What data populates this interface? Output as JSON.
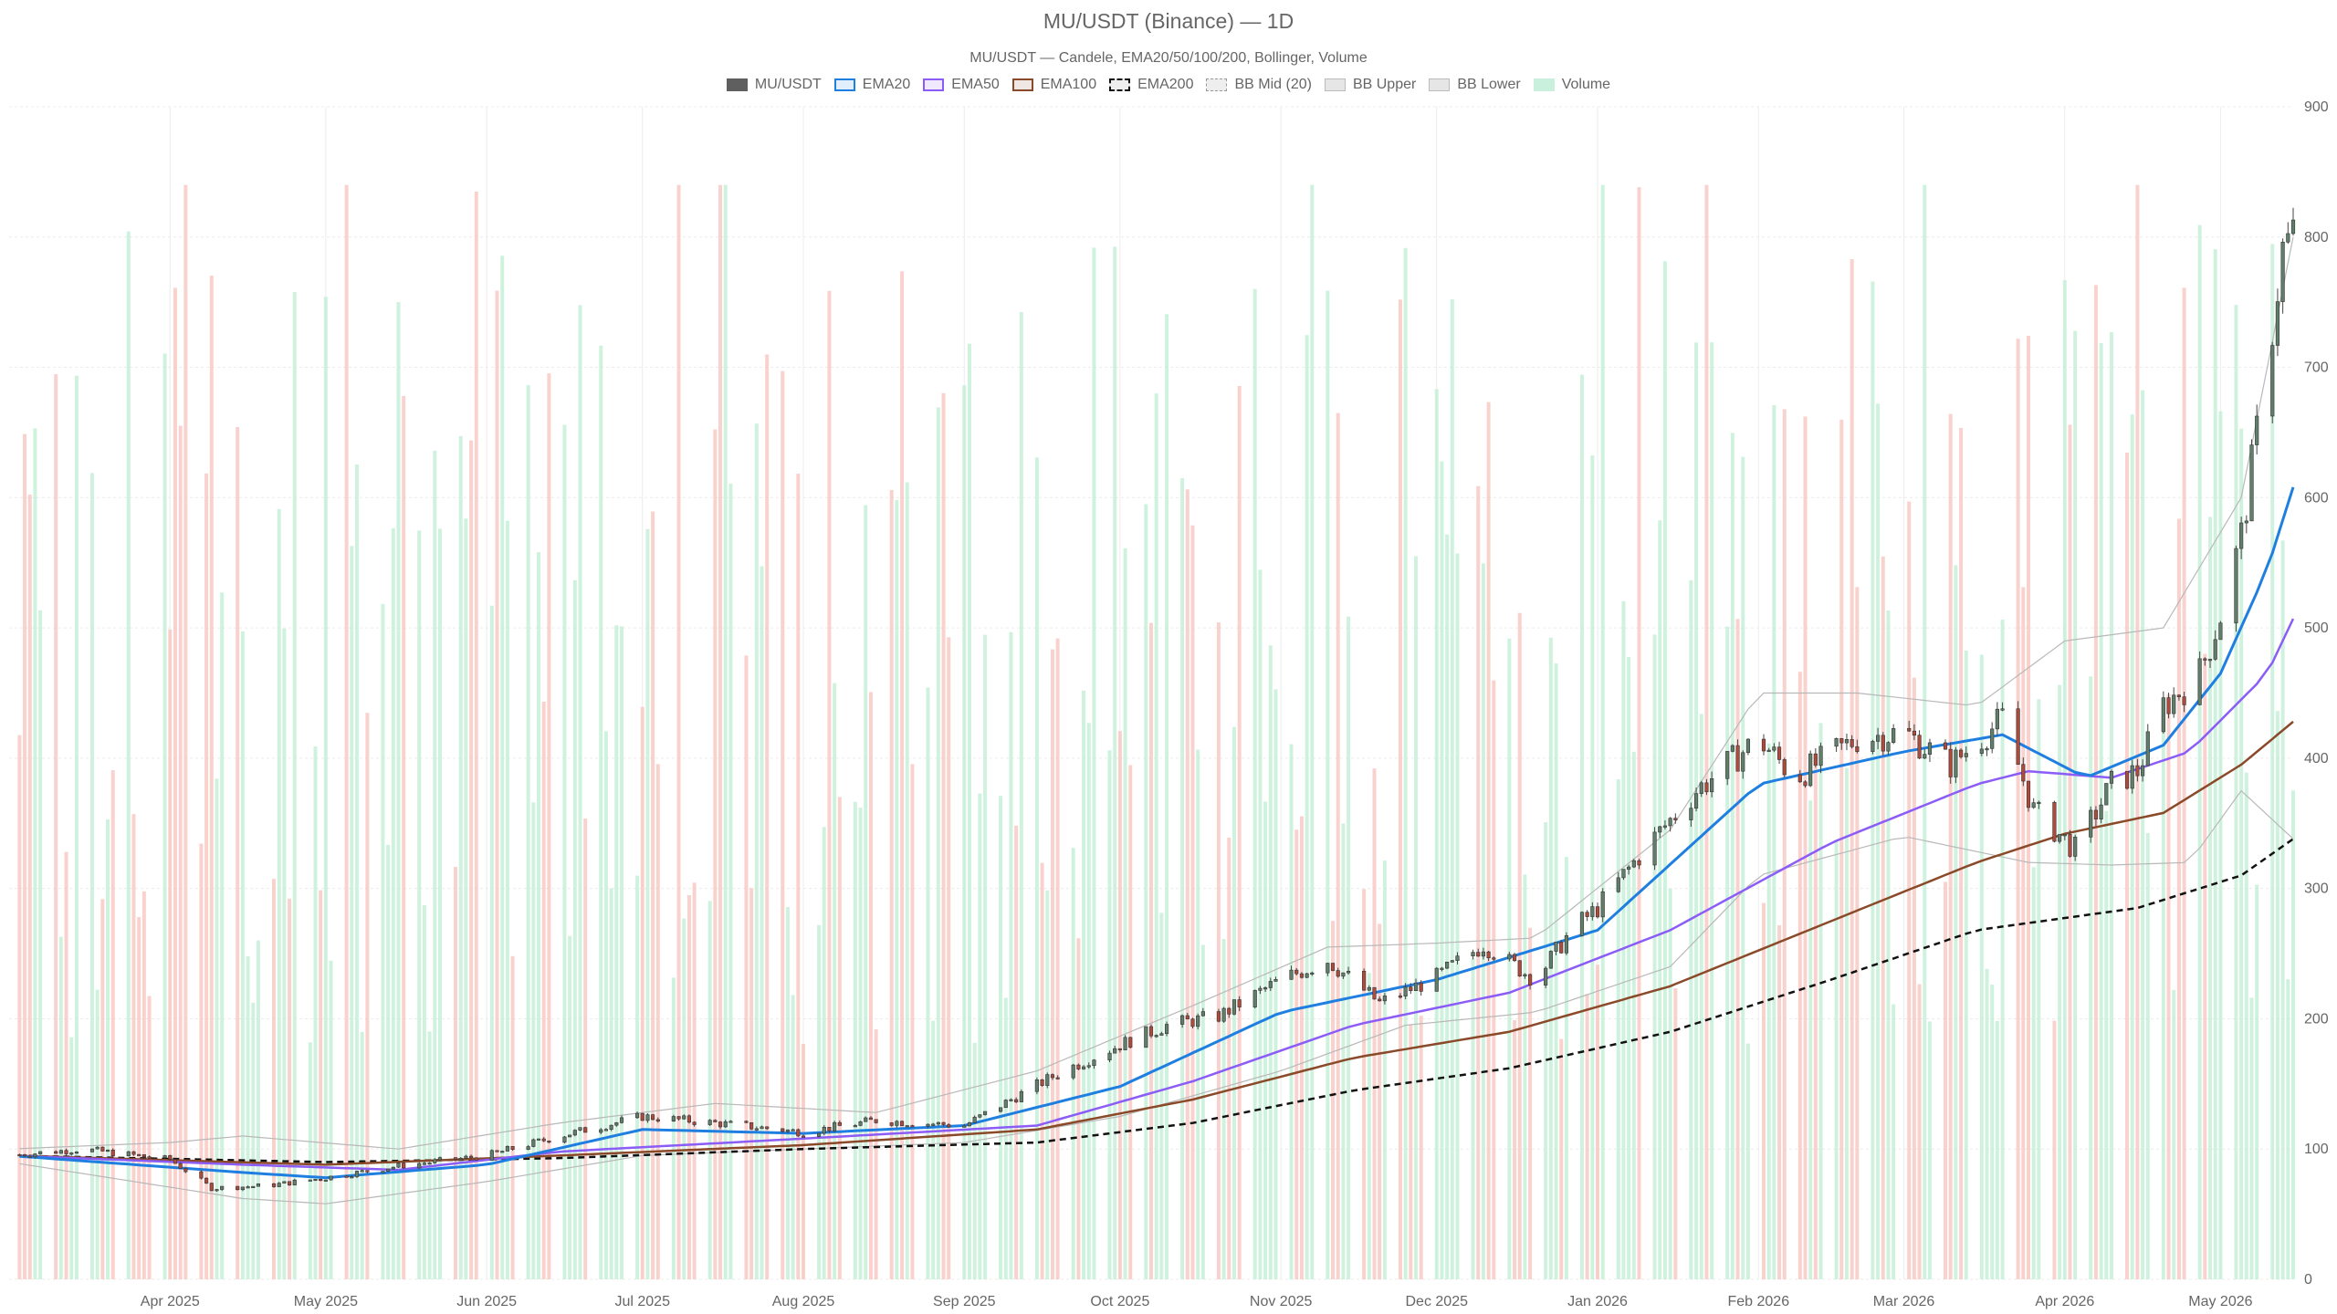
{
  "chart_data": {
    "type": "candlestick",
    "title": "MU/USDT (Binance) — 1D",
    "subtitle": "MU/USDT — Candele, EMA20/50/100/200, Bollinger, Volume",
    "y_ticks": [
      "0",
      "100",
      "200",
      "300",
      "400",
      "500",
      "600",
      "700",
      "800",
      "900"
    ],
    "ylim": [
      0,
      900
    ],
    "grid": true,
    "legend_position": "top-center",
    "x_range": [
      "2025-03-01",
      "2026-05-15"
    ],
    "x_ticks": [
      {
        "label": "Apr 2025",
        "date": "2025-04-01"
      },
      {
        "label": "May 2025",
        "date": "2025-05-01"
      },
      {
        "label": "Jun 2025",
        "date": "2025-06-01"
      },
      {
        "label": "Jul 2025",
        "date": "2025-07-01"
      },
      {
        "label": "Aug 2025",
        "date": "2025-08-01"
      },
      {
        "label": "Sep 2025",
        "date": "2025-09-01"
      },
      {
        "label": "Oct 2025",
        "date": "2025-10-01"
      },
      {
        "label": "Nov 2025",
        "date": "2025-11-01"
      },
      {
        "label": "Dec 2025",
        "date": "2025-12-01"
      },
      {
        "label": "Jan 2026",
        "date": "2026-01-01"
      },
      {
        "label": "Feb 2026",
        "date": "2026-02-01"
      },
      {
        "label": "Mar 2026",
        "date": "2026-03-01"
      },
      {
        "label": "Apr 2026",
        "date": "2026-04-01"
      },
      {
        "label": "May 2026",
        "date": "2026-05-01"
      }
    ],
    "legend": [
      {
        "name": "MU/USDT",
        "color": "#5f5f5f",
        "style": "fill"
      },
      {
        "name": "EMA20",
        "color": "#1f7fe0",
        "style": "line"
      },
      {
        "name": "EMA50",
        "color": "#8b5cf6",
        "style": "line"
      },
      {
        "name": "EMA100",
        "color": "#8a4a2a",
        "style": "line"
      },
      {
        "name": "EMA200",
        "color": "#111111",
        "style": "dashed"
      },
      {
        "name": "BB Mid (20)",
        "color": "#999999",
        "style": "dashed-light"
      },
      {
        "name": "BB Upper",
        "color": "#bbbbbb",
        "style": "light"
      },
      {
        "name": "BB Lower",
        "color": "#bbbbbb",
        "style": "light"
      },
      {
        "name": "Volume",
        "color": "#c9f0dc",
        "style": "fill"
      }
    ],
    "colors": {
      "up": "#5f7f6a",
      "down": "#b04a3a",
      "volume_up": "#bfeed3",
      "volume_down": "#f7c2bc",
      "ema20": "#1f7fe0",
      "ema50": "#8b5cf6",
      "ema100": "#8a4a2a",
      "ema200": "#111111",
      "bb": "#b8b8b8",
      "bb_mid": "#8aa0a8",
      "grid": "#ececec"
    },
    "price_anchors": [
      [
        "2025-03-01",
        95
      ],
      [
        "2025-03-15",
        100
      ],
      [
        "2025-04-01",
        92
      ],
      [
        "2025-04-09",
        70
      ],
      [
        "2025-04-20",
        72
      ],
      [
        "2025-05-01",
        78
      ],
      [
        "2025-05-15",
        87
      ],
      [
        "2025-06-01",
        95
      ],
      [
        "2025-06-15",
        110
      ],
      [
        "2025-07-01",
        125
      ],
      [
        "2025-07-15",
        120
      ],
      [
        "2025-08-01",
        113
      ],
      [
        "2025-08-15",
        122
      ],
      [
        "2025-09-01",
        118
      ],
      [
        "2025-09-10",
        138
      ],
      [
        "2025-09-20",
        160
      ],
      [
        "2025-10-01",
        180
      ],
      [
        "2025-10-10",
        195
      ],
      [
        "2025-10-20",
        202
      ],
      [
        "2025-11-01",
        230
      ],
      [
        "2025-11-10",
        245
      ],
      [
        "2025-11-20",
        212
      ],
      [
        "2025-12-01",
        232
      ],
      [
        "2025-12-10",
        257
      ],
      [
        "2025-12-20",
        230
      ],
      [
        "2025-12-27",
        268
      ],
      [
        "2026-01-01",
        285
      ],
      [
        "2026-01-10",
        330
      ],
      [
        "2026-01-20",
        375
      ],
      [
        "2026-02-01",
        415
      ],
      [
        "2026-02-08",
        385
      ],
      [
        "2026-02-20",
        415
      ],
      [
        "2026-03-01",
        420
      ],
      [
        "2026-03-10",
        395
      ],
      [
        "2026-03-20",
        430
      ],
      [
        "2026-03-26",
        360
      ],
      [
        "2026-04-03",
        330
      ],
      [
        "2026-04-10",
        380
      ],
      [
        "2026-04-15",
        390
      ],
      [
        "2026-04-20",
        440
      ],
      [
        "2026-04-27",
        465
      ],
      [
        "2026-05-01",
        510
      ],
      [
        "2026-05-05",
        570
      ],
      [
        "2026-05-09",
        675
      ],
      [
        "2026-05-13",
        790
      ],
      [
        "2026-05-15",
        800
      ]
    ],
    "ema20_anchors": [
      [
        "2025-03-01",
        95
      ],
      [
        "2025-04-15",
        82
      ],
      [
        "2025-05-01",
        78
      ],
      [
        "2025-06-01",
        88
      ],
      [
        "2025-07-01",
        115
      ],
      [
        "2025-08-01",
        112
      ],
      [
        "2025-09-01",
        118
      ],
      [
        "2025-10-01",
        148
      ],
      [
        "2025-11-01",
        205
      ],
      [
        "2025-12-01",
        230
      ],
      [
        "2026-01-01",
        268
      ],
      [
        "2026-02-01",
        380
      ],
      [
        "2026-03-01",
        405
      ],
      [
        "2026-03-20",
        418
      ],
      [
        "2026-04-05",
        385
      ],
      [
        "2026-04-20",
        410
      ],
      [
        "2026-05-01",
        465
      ],
      [
        "2026-05-10",
        545
      ],
      [
        "2026-05-15",
        608
      ]
    ],
    "ema50_anchors": [
      [
        "2025-03-01",
        95
      ],
      [
        "2025-04-15",
        88
      ],
      [
        "2025-05-15",
        84
      ],
      [
        "2025-06-15",
        98
      ],
      [
        "2025-08-01",
        108
      ],
      [
        "2025-09-15",
        118
      ],
      [
        "2025-10-15",
        152
      ],
      [
        "2025-11-15",
        195
      ],
      [
        "2025-12-15",
        220
      ],
      [
        "2026-01-15",
        268
      ],
      [
        "2026-02-15",
        335
      ],
      [
        "2026-03-15",
        380
      ],
      [
        "2026-03-25",
        390
      ],
      [
        "2026-04-10",
        385
      ],
      [
        "2026-04-25",
        405
      ],
      [
        "2026-05-10",
        465
      ],
      [
        "2026-05-15",
        507
      ]
    ],
    "ema100_anchors": [
      [
        "2025-03-01",
        95
      ],
      [
        "2025-05-01",
        88
      ],
      [
        "2025-06-15",
        95
      ],
      [
        "2025-08-01",
        103
      ],
      [
        "2025-09-15",
        115
      ],
      [
        "2025-10-15",
        138
      ],
      [
        "2025-11-15",
        170
      ],
      [
        "2025-12-15",
        190
      ],
      [
        "2026-01-15",
        225
      ],
      [
        "2026-02-15",
        275
      ],
      [
        "2026-03-15",
        320
      ],
      [
        "2026-04-01",
        342
      ],
      [
        "2026-04-20",
        358
      ],
      [
        "2026-05-05",
        395
      ],
      [
        "2026-05-15",
        428
      ]
    ],
    "ema200_anchors": [
      [
        "2025-03-01",
        95
      ],
      [
        "2025-05-01",
        90
      ],
      [
        "2025-06-15",
        93
      ],
      [
        "2025-08-01",
        100
      ],
      [
        "2025-09-15",
        105
      ],
      [
        "2025-10-15",
        120
      ],
      [
        "2025-11-15",
        145
      ],
      [
        "2025-12-15",
        162
      ],
      [
        "2026-01-15",
        190
      ],
      [
        "2026-02-15",
        230
      ],
      [
        "2026-03-15",
        268
      ],
      [
        "2026-04-15",
        285
      ],
      [
        "2026-05-05",
        310
      ],
      [
        "2026-05-15",
        338
      ]
    ],
    "bb_upper_anchors": [
      [
        "2025-03-01",
        100
      ],
      [
        "2025-04-01",
        105
      ],
      [
        "2025-04-15",
        110
      ],
      [
        "2025-05-15",
        100
      ],
      [
        "2025-06-15",
        120
      ],
      [
        "2025-07-15",
        135
      ],
      [
        "2025-08-15",
        128
      ],
      [
        "2025-09-15",
        160
      ],
      [
        "2025-10-15",
        210
      ],
      [
        "2025-11-10",
        255
      ],
      [
        "2025-12-01",
        258
      ],
      [
        "2025-12-20",
        262
      ],
      [
        "2026-01-15",
        345
      ],
      [
        "2026-02-01",
        450
      ],
      [
        "2026-02-20",
        450
      ],
      [
        "2026-03-15",
        440
      ],
      [
        "2026-04-01",
        490
      ],
      [
        "2026-04-20",
        500
      ],
      [
        "2026-05-05",
        600
      ],
      [
        "2026-05-15",
        800
      ]
    ],
    "bb_lower_anchors": [
      [
        "2025-03-01",
        90
      ],
      [
        "2025-04-15",
        62
      ],
      [
        "2025-05-01",
        58
      ],
      [
        "2025-06-01",
        75
      ],
      [
        "2025-07-01",
        95
      ],
      [
        "2025-08-01",
        100
      ],
      [
        "2025-09-01",
        105
      ],
      [
        "2025-10-01",
        125
      ],
      [
        "2025-11-01",
        160
      ],
      [
        "2025-11-25",
        195
      ],
      [
        "2025-12-20",
        205
      ],
      [
        "2026-01-15",
        240
      ],
      [
        "2026-02-01",
        310
      ],
      [
        "2026-03-01",
        340
      ],
      [
        "2026-03-25",
        320
      ],
      [
        "2026-04-10",
        318
      ],
      [
        "2026-04-25",
        320
      ],
      [
        "2026-05-05",
        375
      ],
      [
        "2026-05-15",
        338
      ]
    ]
  }
}
